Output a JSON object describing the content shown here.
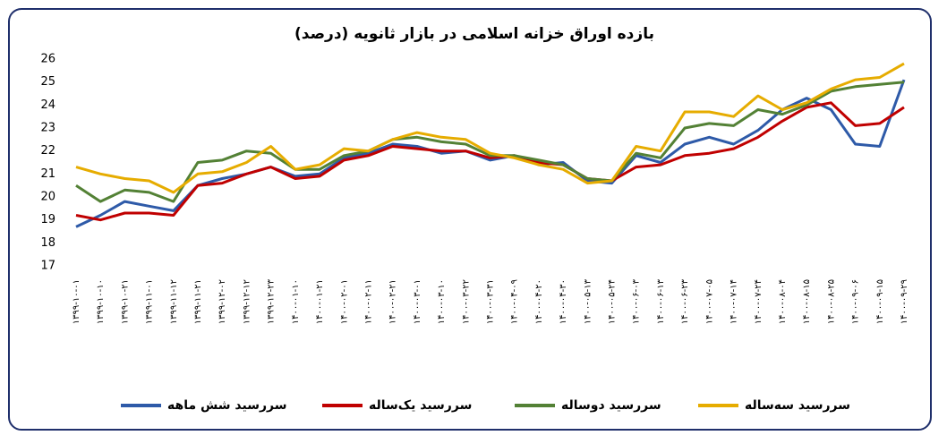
{
  "chart_data": {
    "type": "line",
    "title": "بازده اوراق خزانه اسلامی در بازار ثانویه (درصد)",
    "categories": [
      "۱۳۹۹-۱۰-۰۱",
      "۱۳۹۹-۱۰-۱۰",
      "۱۳۹۹-۱۰-۲۱",
      "۱۳۹۹-۱۱-۰۱",
      "۱۳۹۹-۱۱-۱۲",
      "۱۳۹۹-۱۱-۲۱",
      "۱۳۹۹-۱۲-۰۲",
      "۱۳۹۹-۱۲-۱۲",
      "۱۳۹۹-۱۲-۲۳",
      "۱۴۰۰-۰۱-۱۰",
      "۱۴۰۰-۰۱-۲۱",
      "۱۴۰۰-۰۲-۰۱",
      "۱۴۰۰-۰۲-۱۱",
      "۱۴۰۰-۰۲-۲۱",
      "۱۴۰۰-۰۳-۰۱",
      "۱۴۰۰-۰۳-۱۰",
      "۱۴۰۰-۰۳-۲۲",
      "۱۴۰۰-۰۳-۳۱",
      "۱۴۰۰-۰۴-۰۹",
      "۱۴۰۰-۰۴-۲۰",
      "۱۴۰۰-۰۴-۳۰",
      "۱۴۰۰-۰۵-۱۳",
      "۱۴۰۰-۰۵-۲۴",
      "۱۴۰۰-۰۶-۰۳",
      "۱۴۰۰-۰۶-۱۳",
      "۱۴۰۰-۰۶-۲۳",
      "۱۴۰۰-۰۷-۰۵",
      "۱۴۰۰-۰۷-۱۴",
      "۱۴۰۰-۰۷-۲۴",
      "۱۴۰۰-۰۸-۰۴",
      "۱۴۰۰-۰۸-۱۵",
      "۱۴۰۰-۰۸-۲۵",
      "۱۴۰۰-۰۹-۰۶",
      "۱۴۰۰-۰۹-۱۵",
      "۱۴۰۰-۰۹-۲۹"
    ],
    "series": [
      {
        "name": "سررسید  شش ماهه",
        "color": "#2e5aa8",
        "values": [
          18.7,
          19.2,
          19.8,
          19.6,
          19.4,
          20.5,
          20.8,
          21.0,
          21.3,
          20.9,
          21.0,
          21.7,
          21.9,
          22.3,
          22.2,
          21.9,
          22.0,
          21.6,
          21.8,
          21.4,
          21.5,
          20.7,
          20.6,
          21.8,
          21.5,
          22.3,
          22.6,
          22.3,
          22.9,
          23.8,
          24.3,
          23.8,
          22.3,
          22.2,
          25.1
        ]
      },
      {
        "name": "سررسید یک‌ساله",
        "color": "#c00000",
        "values": [
          19.2,
          19.0,
          19.3,
          19.3,
          19.2,
          20.5,
          20.6,
          21.0,
          21.3,
          20.8,
          20.9,
          21.6,
          21.8,
          22.2,
          22.1,
          22.0,
          22.0,
          21.7,
          21.8,
          21.5,
          21.4,
          20.8,
          20.7,
          21.3,
          21.4,
          21.8,
          21.9,
          22.1,
          22.6,
          23.3,
          23.9,
          24.1,
          23.1,
          23.2,
          23.9
        ]
      },
      {
        "name": "سررسید دوساله",
        "color": "#538135",
        "values": [
          20.5,
          19.8,
          20.3,
          20.2,
          19.8,
          21.5,
          21.6,
          22.0,
          21.9,
          21.2,
          21.2,
          21.8,
          22.0,
          22.5,
          22.6,
          22.4,
          22.3,
          21.8,
          21.8,
          21.6,
          21.4,
          20.8,
          20.7,
          21.9,
          21.7,
          23.0,
          23.2,
          23.1,
          23.8,
          23.6,
          24.0,
          24.6,
          24.8,
          24.9,
          25.0
        ]
      },
      {
        "name": "سررسید سه‌ساله",
        "color": "#e6ac00",
        "values": [
          21.3,
          21.0,
          20.8,
          20.7,
          20.2,
          21.0,
          21.1,
          21.5,
          22.2,
          21.2,
          21.4,
          22.1,
          22.0,
          22.5,
          22.8,
          22.6,
          22.5,
          21.9,
          21.7,
          21.4,
          21.2,
          20.6,
          20.7,
          22.2,
          22.0,
          23.7,
          23.7,
          23.5,
          24.4,
          23.8,
          24.1,
          24.7,
          25.1,
          25.2,
          25.8
        ]
      }
    ],
    "ylim": [
      17,
      26
    ],
    "yticks": [
      17,
      18,
      19,
      20,
      21,
      22,
      23,
      24,
      25,
      26
    ],
    "grid": false
  }
}
